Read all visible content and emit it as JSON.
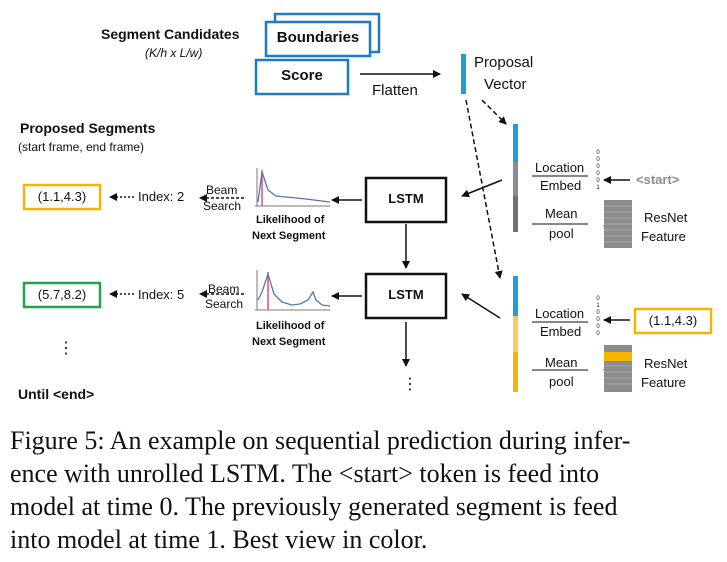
{
  "header": {
    "segment_candidates_title": "Segment Candidates",
    "segment_candidates_sub": "(K/h x L/w)",
    "boundaries": "Boundaries",
    "score": "Score",
    "flatten": "Flatten",
    "proposal_vector": [
      "Proposal",
      "Vector"
    ]
  },
  "proposed": {
    "title": "Proposed Segments",
    "sub": "(start frame, end frame)"
  },
  "rows": [
    {
      "segment": "(1.1,4.3)",
      "segment_color": "#f2b600",
      "index": "Index: 2",
      "beam": [
        "Beam",
        "Search"
      ],
      "likelihood": [
        "Likelihood of",
        "Next Segment"
      ],
      "lstm": "LSTM",
      "location_embed": [
        "Location",
        "Embed"
      ],
      "mean_pool": [
        "Mean",
        "pool"
      ],
      "input_token": "<start>",
      "resnet": [
        "ResNet",
        "Feature"
      ]
    },
    {
      "segment": "(5.7,8.2)",
      "segment_color": "#22a050",
      "index": "Index: 5",
      "beam": [
        "Beam",
        "Search"
      ],
      "likelihood": [
        "Likelihood of",
        "Next Segment"
      ],
      "lstm": "LSTM",
      "location_embed": [
        "Location",
        "Embed"
      ],
      "mean_pool": [
        "Mean",
        "pool"
      ],
      "input_token": "(1.1,4.3)",
      "resnet": [
        "ResNet",
        "Feature"
      ]
    }
  ],
  "bits": [
    "0",
    "0",
    "0",
    "0",
    "0",
    "1"
  ],
  "ellipsis": "⋮",
  "until_end": "Until <end>",
  "caption": [
    "Figure 5: An example on sequential prediction during infer-",
    "ence with unrolled LSTM. The <start> token is feed into",
    "model at time 0. The previously generated segment is feed",
    "into model at time 1. Best view in color."
  ],
  "colors": {
    "blue": "#1a7cc4",
    "yellow": "#f2b600",
    "green": "#22a050",
    "gray": "#8c8c8c"
  }
}
